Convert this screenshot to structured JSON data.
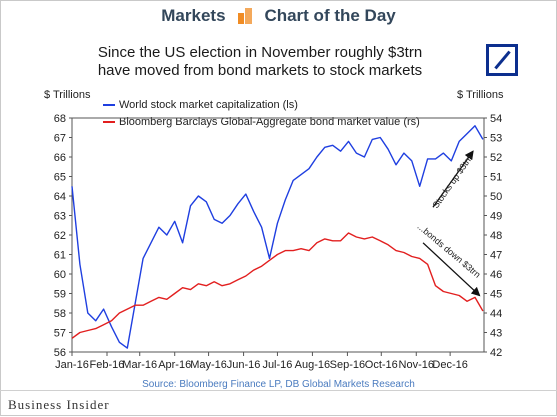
{
  "banner": {
    "left": "Markets",
    "right": "Chart of the Day"
  },
  "headline": {
    "line1": "Since the US election in November roughly $3trn",
    "line2": "have moved from bond markets to stock markets"
  },
  "logo_icon": "deutsche-bank-logo",
  "source": "Source: Bloomberg Finance LP, DB Global Markets Research",
  "footer_brand": "Business Insider",
  "colors": {
    "stock": "#1f3fe0",
    "bond": "#e21f1f",
    "arrow": "#111111"
  },
  "chart_data": {
    "type": "line",
    "left_axis": {
      "title": "$ Trillions",
      "min": 56,
      "max": 68,
      "ticks": [
        56,
        57,
        58,
        59,
        60,
        61,
        62,
        63,
        64,
        65,
        66,
        67,
        68
      ]
    },
    "right_axis": {
      "title": "$ Trillions",
      "min": 42,
      "max": 54,
      "ticks": [
        42,
        43,
        44,
        45,
        46,
        47,
        48,
        49,
        50,
        51,
        52,
        53,
        54
      ]
    },
    "x_axis": {
      "labels": [
        "Jan-16",
        "Feb-16",
        "Mar-16",
        "Apr-16",
        "May-16",
        "Jun-16",
        "Jul-16",
        "Aug-16",
        "Sep-16",
        "Oct-16",
        "Nov-16",
        "Dec-16"
      ]
    },
    "legend_placement": "top-left",
    "series": [
      {
        "name": "World stock market capitalization (ls)",
        "axis": "left",
        "x": [
          "2016-01-01",
          "2016-01-08",
          "2016-01-15",
          "2016-01-22",
          "2016-01-29",
          "2016-02-05",
          "2016-02-12",
          "2016-02-19",
          "2016-02-26",
          "2016-03-04",
          "2016-03-11",
          "2016-03-18",
          "2016-03-25",
          "2016-04-01",
          "2016-04-08",
          "2016-04-15",
          "2016-04-22",
          "2016-04-29",
          "2016-05-06",
          "2016-05-13",
          "2016-05-20",
          "2016-05-27",
          "2016-06-03",
          "2016-06-10",
          "2016-06-17",
          "2016-06-24",
          "2016-07-01",
          "2016-07-08",
          "2016-07-15",
          "2016-07-22",
          "2016-07-29",
          "2016-08-05",
          "2016-08-12",
          "2016-08-19",
          "2016-08-26",
          "2016-09-02",
          "2016-09-09",
          "2016-09-16",
          "2016-09-23",
          "2016-09-30",
          "2016-10-07",
          "2016-10-14",
          "2016-10-21",
          "2016-10-28",
          "2016-11-04",
          "2016-11-11",
          "2016-11-18",
          "2016-11-25",
          "2016-12-02",
          "2016-12-09",
          "2016-12-16",
          "2016-12-23",
          "2016-12-30"
        ],
        "values": [
          64.5,
          60.5,
          58.0,
          57.6,
          58.2,
          57.3,
          56.5,
          56.2,
          58.5,
          60.8,
          61.6,
          62.4,
          62.0,
          62.7,
          61.6,
          63.5,
          64.0,
          63.7,
          62.8,
          62.6,
          63.0,
          63.6,
          64.1,
          63.2,
          62.4,
          60.8,
          62.6,
          63.8,
          64.8,
          65.1,
          65.4,
          66.0,
          66.5,
          66.6,
          66.3,
          66.8,
          66.2,
          66.0,
          66.9,
          67.0,
          66.4,
          65.6,
          66.2,
          65.8,
          64.5,
          65.9,
          65.9,
          66.2,
          65.8,
          66.8,
          67.2,
          67.6,
          66.9
        ]
      },
      {
        "name": "Bloomberg Barclays Global-Aggregate bond market value (rs)",
        "axis": "right",
        "x": [
          "2016-01-01",
          "2016-01-08",
          "2016-01-15",
          "2016-01-22",
          "2016-01-29",
          "2016-02-05",
          "2016-02-12",
          "2016-02-19",
          "2016-02-26",
          "2016-03-04",
          "2016-03-11",
          "2016-03-18",
          "2016-03-25",
          "2016-04-01",
          "2016-04-08",
          "2016-04-15",
          "2016-04-22",
          "2016-04-29",
          "2016-05-06",
          "2016-05-13",
          "2016-05-20",
          "2016-05-27",
          "2016-06-03",
          "2016-06-10",
          "2016-06-17",
          "2016-06-24",
          "2016-07-01",
          "2016-07-08",
          "2016-07-15",
          "2016-07-22",
          "2016-07-29",
          "2016-08-05",
          "2016-08-12",
          "2016-08-19",
          "2016-08-26",
          "2016-09-02",
          "2016-09-09",
          "2016-09-16",
          "2016-09-23",
          "2016-09-30",
          "2016-10-07",
          "2016-10-14",
          "2016-10-21",
          "2016-10-28",
          "2016-11-04",
          "2016-11-11",
          "2016-11-18",
          "2016-11-25",
          "2016-12-02",
          "2016-12-09",
          "2016-12-16",
          "2016-12-23",
          "2016-12-30"
        ],
        "values": [
          42.7,
          43.0,
          43.1,
          43.2,
          43.4,
          43.6,
          44.0,
          44.2,
          44.4,
          44.4,
          44.6,
          44.8,
          44.7,
          45.0,
          45.3,
          45.2,
          45.5,
          45.4,
          45.6,
          45.4,
          45.5,
          45.7,
          45.9,
          46.2,
          46.4,
          46.7,
          47.0,
          47.2,
          47.2,
          47.3,
          47.2,
          47.6,
          47.8,
          47.7,
          47.7,
          48.1,
          47.9,
          47.8,
          47.9,
          47.7,
          47.5,
          47.2,
          47.1,
          46.9,
          46.8,
          46.5,
          45.4,
          45.1,
          45.0,
          44.9,
          44.6,
          44.8,
          44.1
        ]
      }
    ],
    "annotations": [
      {
        "text": "Stocks up $3trn",
        "target_series": 0
      },
      {
        "text": "...bonds down $3trn",
        "target_series": 1
      }
    ]
  }
}
